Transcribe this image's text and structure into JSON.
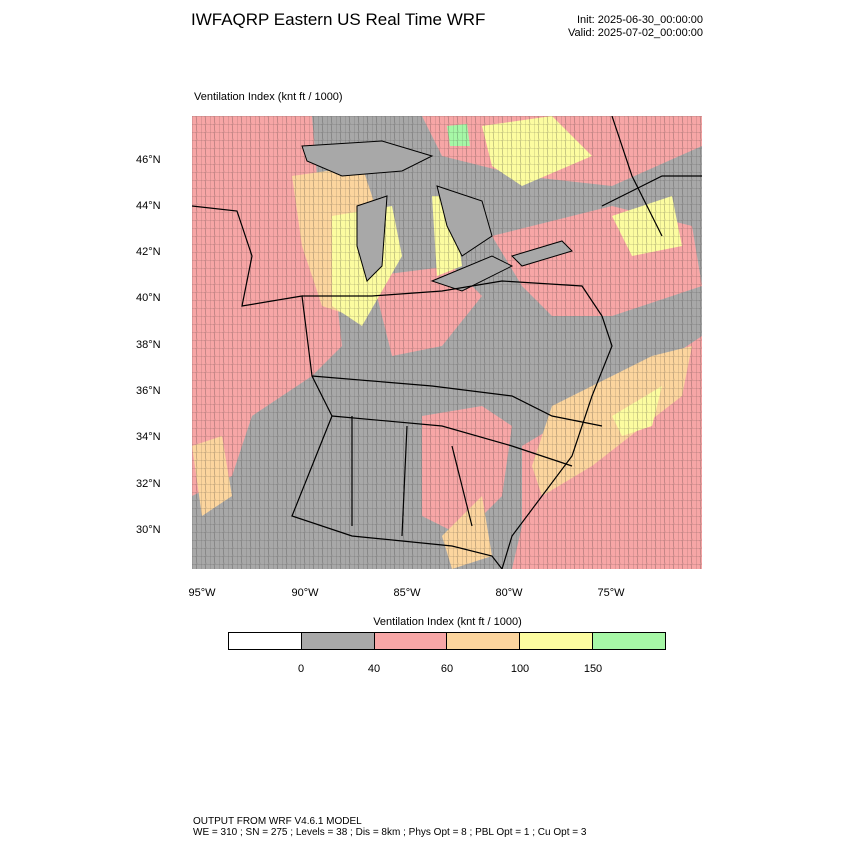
{
  "header": {
    "title": "IWFAQRP Eastern US Real Time WRF",
    "init": "Init: 2025-06-30_00:00:00",
    "valid": "Valid: 2025-07-02_00:00:00"
  },
  "map": {
    "variable_label": "Ventilation Index   (knt ft / 1000)",
    "lat_labels": [
      "46°N",
      "44°N",
      "42°N",
      "40°N",
      "38°N",
      "36°N",
      "34°N",
      "32°N",
      "30°N"
    ],
    "lon_labels": [
      "95°W",
      "90°W",
      "85°W",
      "80°W",
      "75°W"
    ],
    "colors": {
      "land_low": "#a8a8a8",
      "band_40_60": "#f7a6a6",
      "band_60_100": "#fcd59e",
      "band_100_150": "#fcfca0",
      "band_150_plus": "#a6f7a6",
      "water": "#a8a8a8"
    }
  },
  "legend": {
    "title": "Ventilation Index  (knt ft / 1000)",
    "colors": [
      "#ffffff",
      "#a8a8a8",
      "#f7a6a6",
      "#fcd59e",
      "#fcfca0",
      "#a6f7a6"
    ],
    "labels": [
      "0",
      "40",
      "60",
      "100",
      "150"
    ]
  },
  "footer": {
    "line1": "OUTPUT FROM WRF V4.6.1 MODEL",
    "line2": "WE = 310 ; SN = 275 ; Levels = 38 ; Dis = 8km ; Phys Opt = 8 ; PBL Opt = 1 ; Cu Opt = 3"
  }
}
